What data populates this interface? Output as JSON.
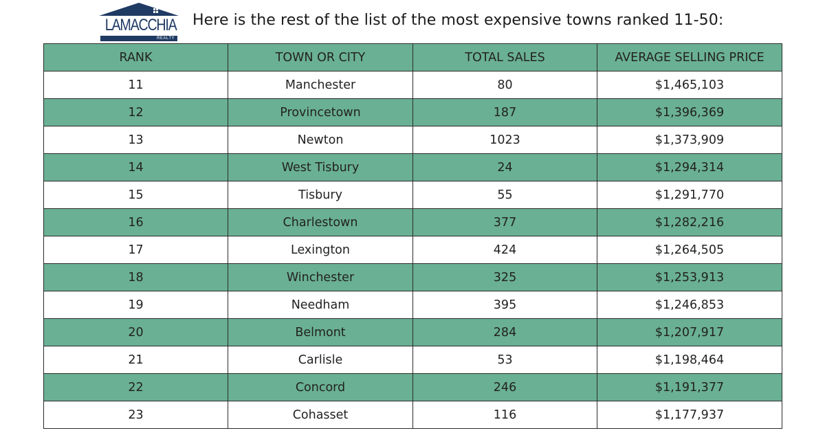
{
  "logo": {
    "brand": "LAMACCHIA",
    "tagline": "REALTY",
    "color": "#1f3a63"
  },
  "headline": "Here is the rest of the list of the most expensive towns ranked 11-50:",
  "colors": {
    "accent_green": "#6ab094",
    "border": "#2a2a2a"
  },
  "table": {
    "headers": [
      "RANK",
      "TOWN OR CITY",
      "TOTAL SALES",
      "AVERAGE SELLING PRICE"
    ],
    "rows": [
      {
        "rank": "11",
        "town": "Manchester",
        "sales": "80",
        "price": "$1,465,103"
      },
      {
        "rank": "12",
        "town": "Provincetown",
        "sales": "187",
        "price": "$1,396,369"
      },
      {
        "rank": "13",
        "town": "Newton",
        "sales": "1023",
        "price": "$1,373,909"
      },
      {
        "rank": "14",
        "town": "West Tisbury",
        "sales": "24",
        "price": "$1,294,314"
      },
      {
        "rank": "15",
        "town": "Tisbury",
        "sales": "55",
        "price": "$1,291,770"
      },
      {
        "rank": "16",
        "town": "Charlestown",
        "sales": "377",
        "price": "$1,282,216"
      },
      {
        "rank": "17",
        "town": "Lexington",
        "sales": "424",
        "price": "$1,264,505"
      },
      {
        "rank": "18",
        "town": "Winchester",
        "sales": "325",
        "price": "$1,253,913"
      },
      {
        "rank": "19",
        "town": "Needham",
        "sales": "395",
        "price": "$1,246,853"
      },
      {
        "rank": "20",
        "town": "Belmont",
        "sales": "284",
        "price": "$1,207,917"
      },
      {
        "rank": "21",
        "town": "Carlisle",
        "sales": "53",
        "price": "$1,198,464"
      },
      {
        "rank": "22",
        "town": "Concord",
        "sales": "246",
        "price": "$1,191,377"
      },
      {
        "rank": "23",
        "town": "Cohasset",
        "sales": "116",
        "price": "$1,177,937"
      }
    ]
  }
}
